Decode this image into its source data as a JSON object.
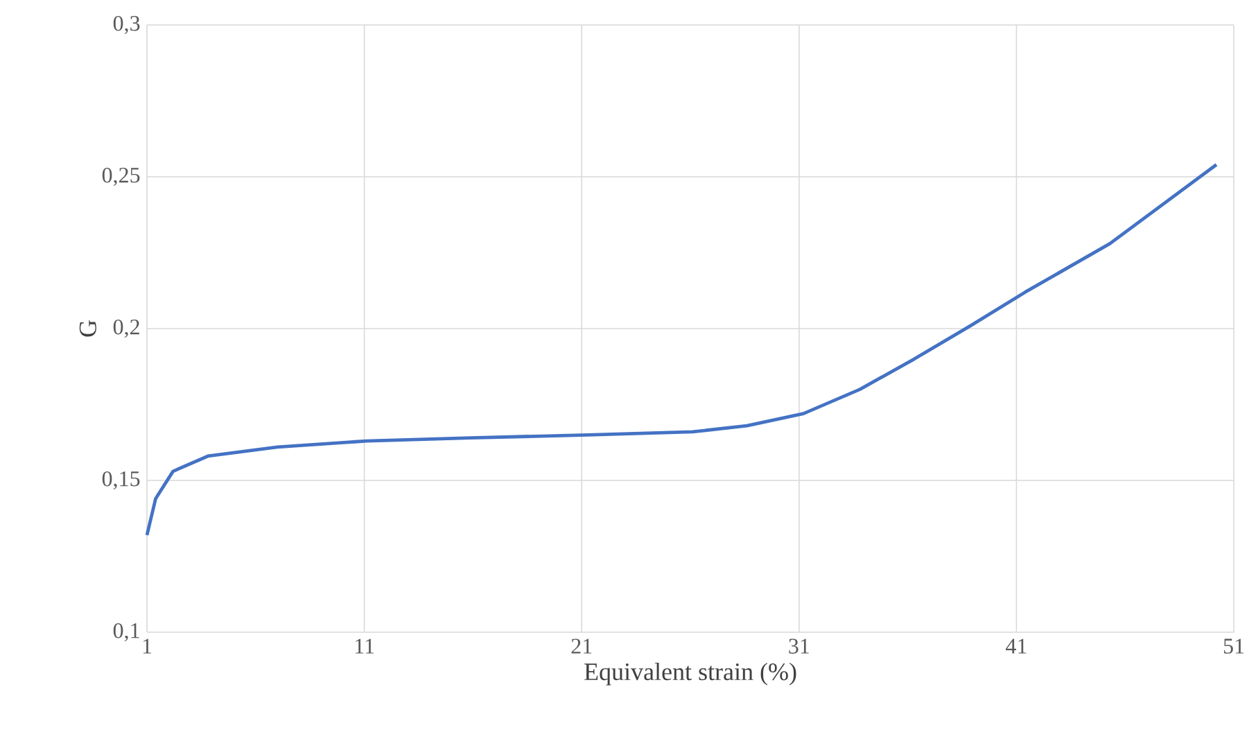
{
  "chart_data": {
    "type": "line",
    "xlabel": "Equivalent strain (%)",
    "ylabel": "G",
    "xlim": [
      1,
      51
    ],
    "ylim": [
      0.1,
      0.3
    ],
    "xticks": [
      1,
      11,
      21,
      31,
      41,
      51
    ],
    "yticks": [
      {
        "value": 0.1,
        "label": "0,1"
      },
      {
        "value": 0.15,
        "label": "0,15"
      },
      {
        "value": 0.2,
        "label": "0,2"
      },
      {
        "value": 0.25,
        "label": "0,25"
      },
      {
        "value": 0.3,
        "label": "0,3"
      }
    ],
    "grid": true,
    "series": [
      {
        "color": "#4472c4",
        "x": [
          1,
          1.4,
          2.2,
          3.8,
          7,
          11.1,
          15.9,
          21.3,
          26.1,
          28.6,
          31.2,
          33.8,
          36.3,
          38.9,
          41.4,
          45.3,
          50.2
        ],
        "values": [
          0.132,
          0.144,
          0.153,
          0.158,
          0.161,
          0.163,
          0.164,
          0.165,
          0.166,
          0.168,
          0.172,
          0.18,
          0.19,
          0.201,
          0.212,
          0.228,
          0.254
        ]
      }
    ]
  }
}
